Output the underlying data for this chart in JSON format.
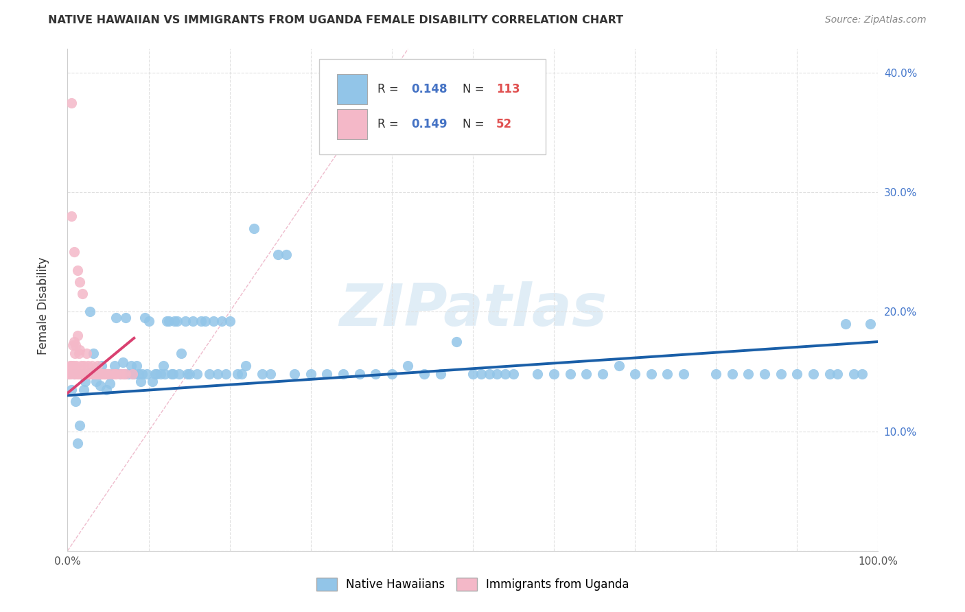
{
  "title": "NATIVE HAWAIIAN VS IMMIGRANTS FROM UGANDA FEMALE DISABILITY CORRELATION CHART",
  "source": "Source: ZipAtlas.com",
  "ylabel": "Female Disability",
  "xlim": [
    0,
    1.0
  ],
  "ylim": [
    0,
    0.42
  ],
  "xtick_vals": [
    0.0,
    0.1,
    0.2,
    0.3,
    0.4,
    0.5,
    0.6,
    0.7,
    0.8,
    0.9,
    1.0
  ],
  "xtick_labels": [
    "0.0%",
    "",
    "",
    "",
    "",
    "",
    "",
    "",
    "",
    "",
    "100.0%"
  ],
  "ytick_vals": [
    0.0,
    0.1,
    0.2,
    0.3,
    0.4
  ],
  "ytick_labels": [
    "",
    "10.0%",
    "20.0%",
    "30.0%",
    "40.0%"
  ],
  "legend_r1": "R = 0.148",
  "legend_n1": "N = 113",
  "legend_r2": "R = 0.149",
  "legend_n2": "N = 52",
  "color_blue": "#92c5e8",
  "color_pink": "#f4b8c8",
  "color_blue_line": "#1a5fa8",
  "color_pink_line": "#d94070",
  "color_rvalue": "#4472c4",
  "color_nvalue": "#e05050",
  "watermark": "ZIPatlas",
  "grid_color": "#e0e0e0",
  "blue_scatter_x": [
    0.005,
    0.008,
    0.01,
    0.012,
    0.015,
    0.018,
    0.02,
    0.022,
    0.025,
    0.028,
    0.03,
    0.032,
    0.035,
    0.038,
    0.04,
    0.042,
    0.045,
    0.048,
    0.05,
    0.052,
    0.055,
    0.058,
    0.06,
    0.065,
    0.068,
    0.07,
    0.072,
    0.075,
    0.078,
    0.08,
    0.082,
    0.085,
    0.088,
    0.09,
    0.092,
    0.095,
    0.098,
    0.1,
    0.105,
    0.108,
    0.11,
    0.115,
    0.118,
    0.12,
    0.122,
    0.125,
    0.128,
    0.13,
    0.132,
    0.135,
    0.138,
    0.14,
    0.145,
    0.148,
    0.15,
    0.155,
    0.16,
    0.165,
    0.17,
    0.175,
    0.18,
    0.185,
    0.19,
    0.195,
    0.2,
    0.21,
    0.215,
    0.22,
    0.23,
    0.24,
    0.25,
    0.26,
    0.27,
    0.28,
    0.3,
    0.32,
    0.34,
    0.36,
    0.38,
    0.4,
    0.42,
    0.44,
    0.46,
    0.48,
    0.5,
    0.51,
    0.52,
    0.53,
    0.54,
    0.55,
    0.58,
    0.6,
    0.62,
    0.64,
    0.66,
    0.68,
    0.7,
    0.72,
    0.74,
    0.76,
    0.8,
    0.82,
    0.84,
    0.86,
    0.88,
    0.9,
    0.92,
    0.94,
    0.95,
    0.96,
    0.97,
    0.98,
    0.99
  ],
  "blue_scatter_y": [
    0.135,
    0.148,
    0.125,
    0.09,
    0.105,
    0.148,
    0.135,
    0.142,
    0.148,
    0.2,
    0.15,
    0.165,
    0.142,
    0.148,
    0.138,
    0.155,
    0.148,
    0.135,
    0.148,
    0.14,
    0.148,
    0.155,
    0.195,
    0.148,
    0.158,
    0.148,
    0.195,
    0.148,
    0.155,
    0.148,
    0.148,
    0.155,
    0.148,
    0.142,
    0.148,
    0.195,
    0.148,
    0.192,
    0.142,
    0.148,
    0.148,
    0.148,
    0.155,
    0.148,
    0.192,
    0.192,
    0.148,
    0.148,
    0.192,
    0.192,
    0.148,
    0.165,
    0.192,
    0.148,
    0.148,
    0.192,
    0.148,
    0.192,
    0.192,
    0.148,
    0.192,
    0.148,
    0.192,
    0.148,
    0.192,
    0.148,
    0.148,
    0.155,
    0.27,
    0.148,
    0.148,
    0.248,
    0.248,
    0.148,
    0.148,
    0.148,
    0.148,
    0.148,
    0.148,
    0.148,
    0.155,
    0.148,
    0.148,
    0.175,
    0.148,
    0.148,
    0.148,
    0.148,
    0.148,
    0.148,
    0.148,
    0.148,
    0.148,
    0.148,
    0.148,
    0.155,
    0.148,
    0.148,
    0.148,
    0.148,
    0.148,
    0.148,
    0.148,
    0.148,
    0.148,
    0.148,
    0.148,
    0.148,
    0.148,
    0.19,
    0.148,
    0.148,
    0.19
  ],
  "pink_scatter_x": [
    0.001,
    0.002,
    0.003,
    0.004,
    0.005,
    0.006,
    0.007,
    0.008,
    0.009,
    0.01,
    0.011,
    0.012,
    0.013,
    0.014,
    0.015,
    0.016,
    0.017,
    0.018,
    0.019,
    0.02,
    0.021,
    0.022,
    0.023,
    0.024,
    0.025,
    0.026,
    0.027,
    0.028,
    0.029,
    0.03,
    0.031,
    0.032,
    0.033,
    0.034,
    0.035,
    0.036,
    0.037,
    0.038,
    0.039,
    0.04,
    0.042,
    0.044,
    0.046,
    0.048,
    0.05,
    0.055,
    0.058,
    0.06,
    0.065,
    0.068,
    0.072,
    0.08
  ],
  "pink_scatter_y": [
    0.148,
    0.148,
    0.155,
    0.148,
    0.155,
    0.172,
    0.155,
    0.148,
    0.165,
    0.148,
    0.155,
    0.148,
    0.148,
    0.165,
    0.168,
    0.148,
    0.155,
    0.148,
    0.148,
    0.155,
    0.148,
    0.148,
    0.165,
    0.148,
    0.155,
    0.148,
    0.148,
    0.148,
    0.148,
    0.155,
    0.148,
    0.148,
    0.148,
    0.148,
    0.148,
    0.148,
    0.155,
    0.148,
    0.148,
    0.148,
    0.148,
    0.148,
    0.148,
    0.148,
    0.148,
    0.148,
    0.148,
    0.148,
    0.148,
    0.148,
    0.148,
    0.148
  ],
  "pink_outlier_x": [
    0.005,
    0.005,
    0.008,
    0.012,
    0.015,
    0.018,
    0.008,
    0.01,
    0.012
  ],
  "pink_outlier_y": [
    0.375,
    0.28,
    0.25,
    0.235,
    0.225,
    0.215,
    0.175,
    0.172,
    0.18
  ],
  "blue_line_x": [
    0.0,
    1.0
  ],
  "blue_line_y": [
    0.13,
    0.175
  ],
  "pink_line_x": [
    0.0,
    0.082
  ],
  "pink_line_y": [
    0.132,
    0.178
  ],
  "diag_line_x": [
    0.0,
    0.42
  ],
  "diag_line_y": [
    0.0,
    0.42
  ]
}
